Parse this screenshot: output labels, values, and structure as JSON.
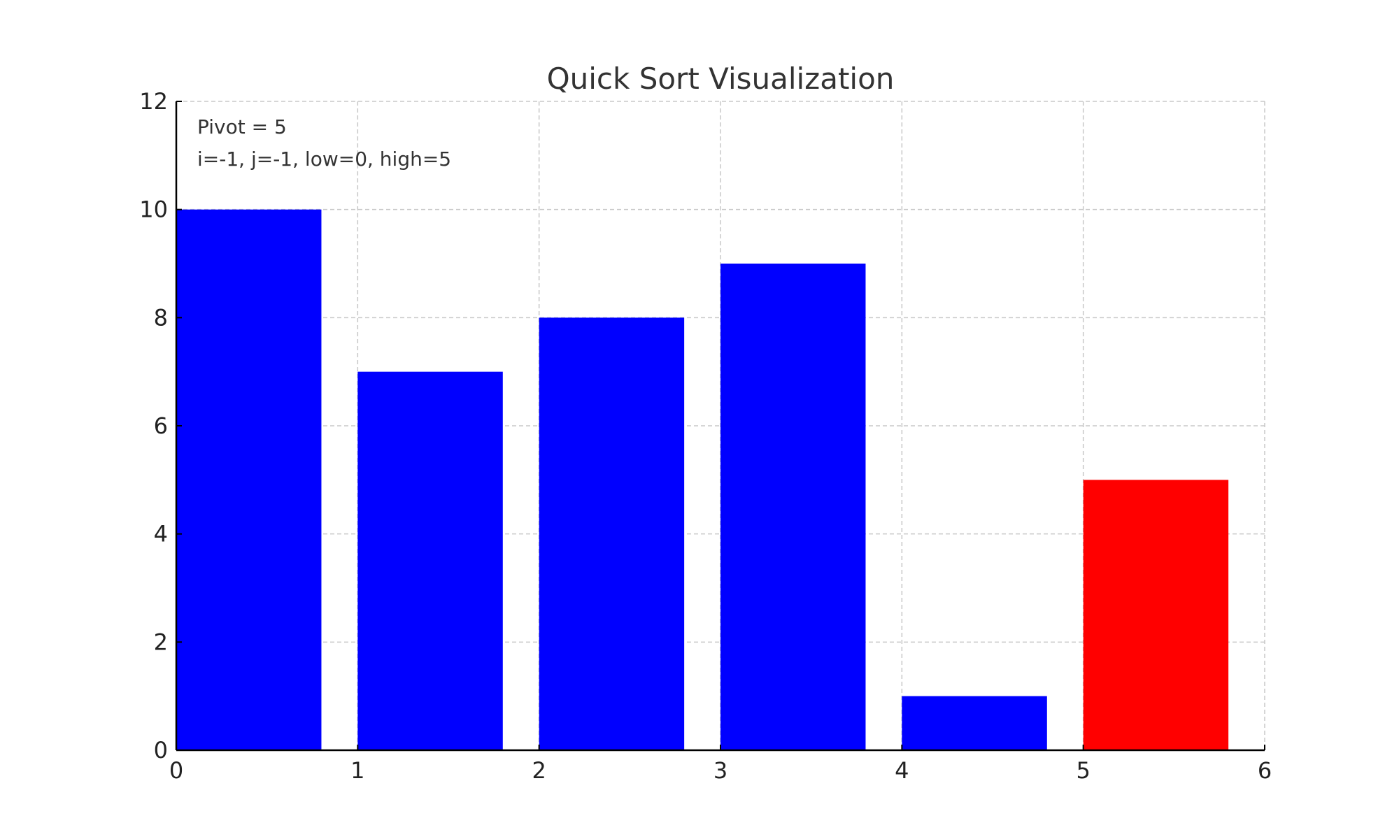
{
  "chart_data": {
    "type": "bar",
    "title": "Quick Sort Visualization",
    "xlabel": "",
    "ylabel": "",
    "x": [
      0,
      1,
      2,
      3,
      4,
      5
    ],
    "values": [
      10,
      7,
      8,
      9,
      1,
      5
    ],
    "colors": [
      "#0000ff",
      "#0000ff",
      "#0000ff",
      "#0000ff",
      "#0000ff",
      "#ff0000"
    ],
    "bar_width": 0.8,
    "xlim": [
      0,
      6
    ],
    "ylim": [
      0,
      12
    ],
    "xticks": [
      "0",
      "1",
      "2",
      "3",
      "4",
      "5",
      "6"
    ],
    "yticks": [
      "0",
      "2",
      "4",
      "6",
      "8",
      "10",
      "12"
    ],
    "grid": true,
    "annotations": [
      "Pivot = 5",
      "i=-1, j=-1, low=0, high=5"
    ]
  }
}
